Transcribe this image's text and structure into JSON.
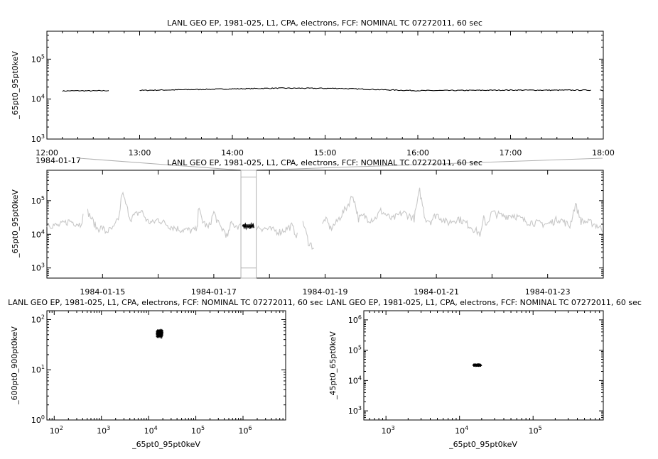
{
  "chart_data": [
    {
      "type": "line",
      "title": "LANL GEO EP, 1981-025, L1, CPA, electrons, FCF: NOMINAL TC 07272011, 60 sec",
      "ylabel": "_65pt0_95pt0keV",
      "xlabel": "",
      "x_range": [
        "1984-01-17 12:00",
        "1984-01-17 18:00"
      ],
      "y_scale": "log",
      "ylim": [
        1000,
        500000
      ],
      "x_tick_labels": [
        "12:00",
        "13:00",
        "14:00",
        "15:00",
        "16:00",
        "17:00",
        "18:00"
      ],
      "x_extra_label": "1984-01-17",
      "y_tick_labels": [
        {
          "base": "10",
          "exp": "3"
        },
        {
          "base": "10",
          "exp": "4"
        },
        {
          "base": "10",
          "exp": "5"
        }
      ],
      "series": [
        {
          "segments": [
            [
              [
                "12:10",
                16000
              ],
              [
                "12:20",
                16200
              ],
              [
                "12:30",
                16100
              ],
              [
                "12:40",
                16300
              ]
            ],
            [
              [
                "13:00",
                16500
              ],
              [
                "13:30",
                17200
              ],
              [
                "14:00",
                18000
              ],
              [
                "14:30",
                18800
              ],
              [
                "15:00",
                18600
              ],
              [
                "15:10",
                18600
              ]
            ],
            [
              [
                "15:10",
                18500
              ],
              [
                "15:40",
                17000
              ],
              [
                "16:00",
                16300
              ],
              [
                "16:30",
                16500
              ],
              [
                "17:00",
                16800
              ],
              [
                "17:30",
                16700
              ],
              [
                "17:52",
                16800
              ]
            ],
            [
              [
                "17:58",
                17000
              ],
              [
                "18:00",
                16000
              ]
            ]
          ]
        }
      ]
    },
    {
      "type": "line",
      "title": "LANL GEO EP, 1981-025, L1, CPA, electrons, FCF: NOMINAL TC 07272011, 60 sec",
      "ylabel": "_65pt0_95pt0keV",
      "xlabel": "",
      "x_range": [
        "1984-01-14 00:00",
        "1984-01-24 00:00"
      ],
      "y_scale": "log",
      "ylim": [
        500,
        800000
      ],
      "x_tick_labels": [
        "1984-01-15",
        "1984-01-17",
        "1984-01-19",
        "1984-01-21",
        "1984-01-23"
      ],
      "y_tick_labels": [
        {
          "base": "10",
          "exp": "3"
        },
        {
          "base": "10",
          "exp": "4"
        },
        {
          "base": "10",
          "exp": "5"
        }
      ],
      "context_color": "#c8c8c8",
      "highlight_range": [
        "1984-01-17 12:00",
        "1984-01-17 18:00"
      ],
      "series": [
        {
          "days": [
            0.0,
            0.2,
            0.4,
            0.6,
            0.7,
            0.9,
            1.0,
            1.05,
            1.2,
            1.3,
            1.35,
            1.5,
            1.7,
            1.8,
            1.9,
            2.0,
            2.2,
            2.4,
            2.6,
            2.7,
            2.72,
            2.8,
            2.9,
            3.0,
            3.1,
            3.2,
            3.25,
            3.3,
            3.5,
            3.7,
            3.9,
            4.0,
            4.2,
            4.4,
            4.5,
            4.6,
            4.7,
            4.8,
            5.0,
            5.1,
            5.2,
            5.3,
            5.4,
            5.5,
            5.6,
            5.7,
            5.8,
            5.9,
            6.0,
            6.2,
            6.4,
            6.6,
            6.7,
            6.8,
            6.9,
            7.0,
            7.2,
            7.4,
            7.6,
            7.8,
            7.85,
            7.9,
            8.0,
            8.2,
            8.4,
            8.5,
            8.6,
            8.8,
            9.0,
            9.2,
            9.4,
            9.5,
            9.6,
            9.8,
            10.0
          ],
          "values": [
            20000,
            18000,
            25000,
            20000,
            60000,
            15000,
            16000,
            12000,
            15000,
            35000,
            180000,
            30000,
            50000,
            25000,
            22000,
            28000,
            18000,
            14000,
            13000,
            14000,
            60000,
            25000,
            15000,
            45000,
            18000,
            12000,
            8000,
            20000,
            17000,
            18000,
            15000,
            14000,
            12000,
            18000,
            9000,
            25000,
            6000,
            4000,
            30000,
            15000,
            22000,
            40000,
            70000,
            150000,
            30000,
            35000,
            28000,
            30000,
            50000,
            28000,
            45000,
            30000,
            200000,
            30000,
            25000,
            40000,
            22000,
            30000,
            18000,
            10000,
            30000,
            20000,
            45000,
            35000,
            38000,
            30000,
            25000,
            22000,
            20000,
            30000,
            18000,
            80000,
            25000,
            22000,
            14000
          ]
        }
      ]
    },
    {
      "type": "scatter",
      "title": "LANL GEO EP, 1981-025, L1, CPA, electrons, FCF: NOMINAL TC 07272011, 60 sec",
      "xlabel": "_65pt0_95pt0keV",
      "ylabel": "_600pt0_900pt0keV",
      "x_scale": "log",
      "y_scale": "log",
      "xlim": [
        70,
        8000000
      ],
      "ylim": [
        1,
        150
      ],
      "x_tick_labels": [
        {
          "base": "10",
          "exp": "2"
        },
        {
          "base": "10",
          "exp": "3"
        },
        {
          "base": "10",
          "exp": "4"
        },
        {
          "base": "10",
          "exp": "5"
        },
        {
          "base": "10",
          "exp": "6"
        }
      ],
      "y_tick_labels": [
        {
          "base": "10",
          "exp": "0"
        },
        {
          "base": "10",
          "exp": "1"
        },
        {
          "base": "10",
          "exp": "2"
        }
      ],
      "cluster": {
        "x_range": [
          15000,
          19500
        ],
        "y_range": [
          42,
          65
        ]
      }
    },
    {
      "type": "scatter",
      "title": "LANL GEO EP, 1981-025, L1, CPA, electrons, FCF: NOMINAL TC 07272011, 60 sec",
      "xlabel": "_65pt0_95pt0keV",
      "ylabel": "_45pt0_65pt0keV",
      "x_scale": "log",
      "y_scale": "log",
      "xlim": [
        500,
        900000
      ],
      "ylim": [
        500,
        2000000
      ],
      "x_tick_labels": [
        {
          "base": "10",
          "exp": "3"
        },
        {
          "base": "10",
          "exp": "4"
        },
        {
          "base": "10",
          "exp": "5"
        }
      ],
      "y_tick_labels": [
        {
          "base": "10",
          "exp": "3"
        },
        {
          "base": "10",
          "exp": "4"
        },
        {
          "base": "10",
          "exp": "5"
        },
        {
          "base": "10",
          "exp": "6"
        }
      ],
      "cluster": {
        "x_range": [
          15500,
          19500
        ],
        "y_range": [
          30000,
          34500
        ]
      }
    }
  ]
}
